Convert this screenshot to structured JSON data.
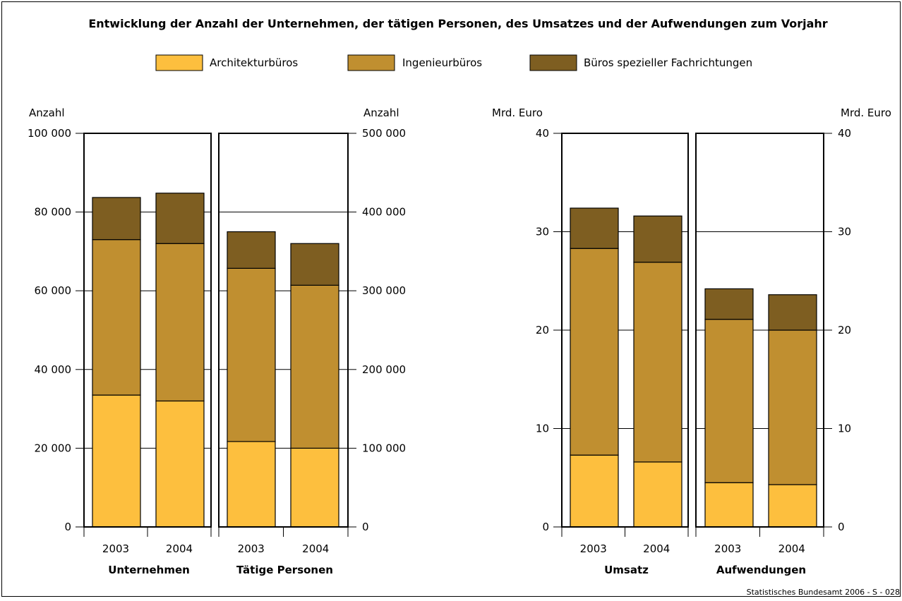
{
  "title": "Entwicklung der Anzahl der Unternehmen, der tätigen Personen, des Umsatzes und der Aufwendungen zum Vorjahr",
  "source": "Statistisches Bundesamt 2006 - S - 028",
  "legend": [
    {
      "label": "Architekturbüros",
      "color": "#FDBF3E"
    },
    {
      "label": "Ingenieurbüros",
      "color": "#C08F30"
    },
    {
      "label": "Büros spezieller Fachrichtungen",
      "color": "#7E5E21"
    }
  ],
  "axes": {
    "left_unit": "Anzahl",
    "left_ticks": [
      "0",
      "20 000",
      "40 000",
      "60 000",
      "80 000",
      "100 000"
    ],
    "mid_unit": "Anzahl",
    "mid_ticks": [
      "0",
      "100 000",
      "200 000",
      "300 000",
      "400 000",
      "500 000"
    ],
    "right_left_unit": "Mrd. Euro",
    "right_left_ticks": [
      "0",
      "10",
      "20",
      "30",
      "40"
    ],
    "right_right_unit": "Mrd. Euro",
    "right_right_ticks": [
      "0",
      "10",
      "20",
      "30",
      "40"
    ]
  },
  "chart_data": [
    {
      "type": "bar",
      "stacked": true,
      "title": "Unternehmen",
      "ylabel": "Anzahl",
      "categories": [
        "2003",
        "2004"
      ],
      "ylim": [
        0,
        100000
      ],
      "series": [
        {
          "name": "Architekturbüros",
          "values": [
            33500,
            32000
          ]
        },
        {
          "name": "Ingenieurbüros",
          "values": [
            39500,
            40000
          ]
        },
        {
          "name": "Büros spezieller Fachrichtungen",
          "values": [
            10700,
            12800
          ]
        }
      ]
    },
    {
      "type": "bar",
      "stacked": true,
      "title": "Tätige Personen",
      "ylabel": "Anzahl",
      "categories": [
        "2003",
        "2004"
      ],
      "ylim": [
        0,
        500000
      ],
      "series": [
        {
          "name": "Architekturbüros",
          "values": [
            108500,
            100000
          ]
        },
        {
          "name": "Ingenieurbüros",
          "values": [
            220000,
            207000
          ]
        },
        {
          "name": "Büros spezieller Fachrichtungen",
          "values": [
            46500,
            53000
          ]
        }
      ]
    },
    {
      "type": "bar",
      "stacked": true,
      "title": "Umsatz",
      "ylabel": "Mrd. Euro",
      "categories": [
        "2003",
        "2004"
      ],
      "ylim": [
        0,
        40
      ],
      "series": [
        {
          "name": "Architekturbüros",
          "values": [
            7.3,
            6.6
          ]
        },
        {
          "name": "Ingenieurbüros",
          "values": [
            21.0,
            20.3
          ]
        },
        {
          "name": "Büros spezieller Fachrichtungen",
          "values": [
            4.1,
            4.7
          ]
        }
      ]
    },
    {
      "type": "bar",
      "stacked": true,
      "title": "Aufwendungen",
      "ylabel": "Mrd. Euro",
      "categories": [
        "2003",
        "2004"
      ],
      "ylim": [
        0,
        40
      ],
      "series": [
        {
          "name": "Architekturbüros",
          "values": [
            4.5,
            4.3
          ]
        },
        {
          "name": "Ingenieurbüros",
          "values": [
            16.6,
            15.7
          ]
        },
        {
          "name": "Büros spezieller Fachrichtungen",
          "values": [
            3.1,
            3.6
          ]
        }
      ]
    }
  ]
}
